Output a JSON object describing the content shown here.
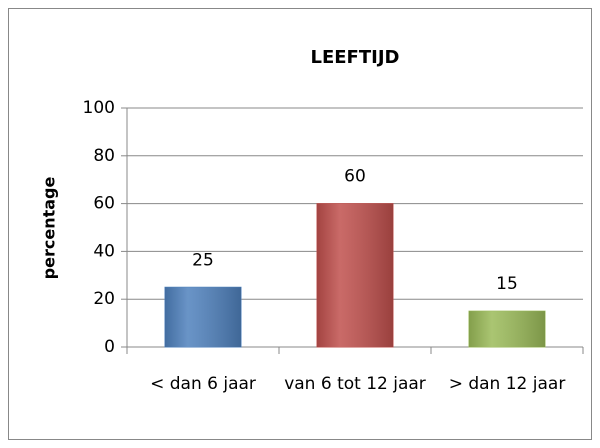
{
  "chart_data": {
    "type": "bar",
    "title": "LEEFTIJD",
    "y_label": "percentage",
    "categories": [
      "< dan 6 jaar",
      "van 6 tot 12 jaar",
      "> dan 12 jaar"
    ],
    "values": [
      25,
      60,
      15
    ],
    "colors": [
      "#4f81bd",
      "#c0504d",
      "#9bbb59"
    ],
    "ylim": [
      0,
      100
    ],
    "yticks": [
      0,
      20,
      40,
      60,
      80,
      100
    ],
    "grid": true
  }
}
